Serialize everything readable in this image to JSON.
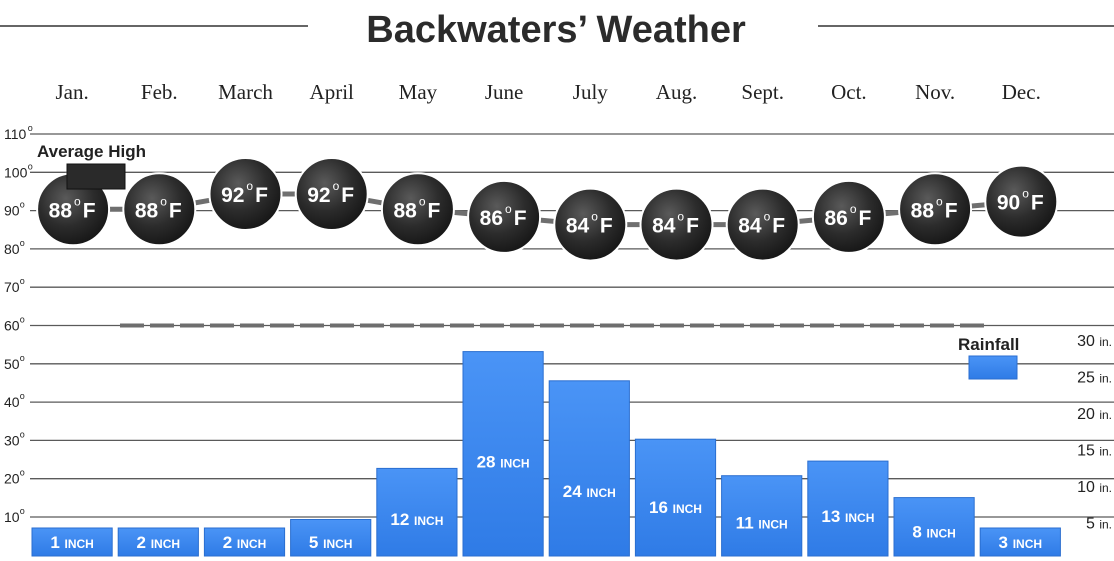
{
  "chart_data": {
    "type": "bar",
    "title": "Backwaters’ Weather",
    "categories": [
      "Jan.",
      "Feb.",
      "March",
      "April",
      "May",
      "June",
      "July",
      "Aug.",
      "Sept.",
      "Oct.",
      "Nov.",
      "Dec."
    ],
    "temperature_axis": {
      "ticks": [
        "110",
        "100",
        "90",
        "80",
        "70",
        "60",
        "50",
        "40",
        "30",
        "20",
        "10"
      ],
      "degree_mark": "o",
      "range": [
        10,
        110
      ]
    },
    "rainfall_axis": {
      "ticks": [
        {
          "value": 30,
          "label": "30",
          "unit": "in."
        },
        {
          "value": 25,
          "label": "25",
          "unit": "in."
        },
        {
          "value": 20,
          "label": "20",
          "unit": "in."
        },
        {
          "value": 15,
          "label": "15",
          "unit": "in."
        },
        {
          "value": 10,
          "label": "10",
          "unit": "in."
        },
        {
          "value": 5,
          "label": "5",
          "unit": "in."
        }
      ],
      "range": [
        0,
        30
      ]
    },
    "series": [
      {
        "name": "Average High",
        "type": "line",
        "values": [
          88,
          88,
          92,
          92,
          88,
          86,
          84,
          84,
          84,
          86,
          88,
          90
        ],
        "point_labels": [
          "88",
          "88",
          "92",
          "92",
          "88",
          "86",
          "84",
          "84",
          "84",
          "86",
          "88",
          "90"
        ],
        "unit": "F",
        "degree_mark": "o",
        "color": "#2a2a2a"
      },
      {
        "name": "Rainfall",
        "type": "bar",
        "values": [
          1,
          2,
          2,
          5,
          12,
          28,
          24,
          16,
          11,
          13,
          8,
          3
        ],
        "bar_labels": [
          "1",
          "2",
          "2",
          "5",
          "12",
          "28",
          "24",
          "16",
          "11",
          "13",
          "8",
          "3"
        ],
        "unit": "INCH",
        "color": "#3a86f0"
      }
    ],
    "reference_line": {
      "value": 60,
      "style": "dashed"
    },
    "grid": true,
    "legend": [
      {
        "label": "Average High",
        "placement": "top-left"
      },
      {
        "label": "Rainfall",
        "placement": "right"
      }
    ]
  }
}
